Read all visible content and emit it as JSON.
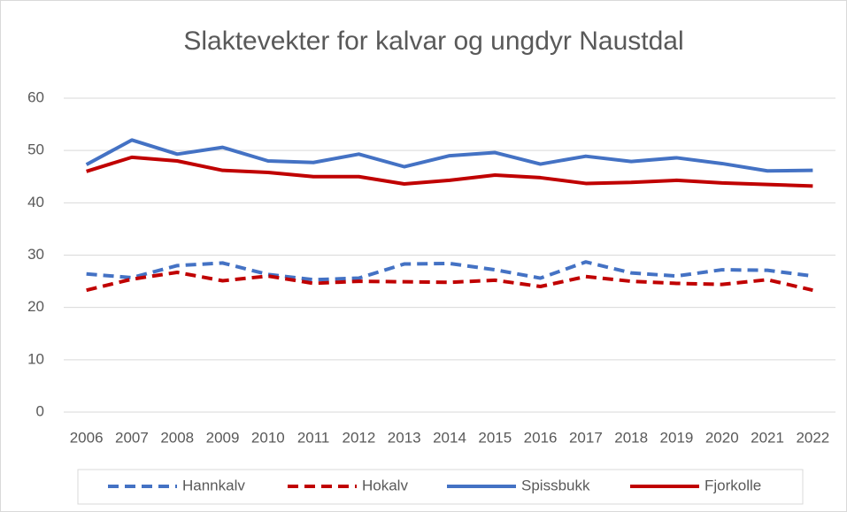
{
  "chart_data": {
    "type": "line",
    "title": "Slaktevekter for kalvar og ungdyr Naustdal",
    "categories": [
      "2006",
      "2007",
      "2008",
      "2009",
      "2010",
      "2011",
      "2012",
      "2013",
      "2014",
      "2015",
      "2016",
      "2017",
      "2018",
      "2019",
      "2020",
      "2021",
      "2022"
    ],
    "series": [
      {
        "name": "Hannkalv",
        "color": "#4472c4",
        "dashed": true,
        "values": [
          26.4,
          25.7,
          28,
          28.5,
          26.3,
          25.3,
          25.6,
          28.3,
          28.4,
          27.2,
          25.6,
          28.7,
          26.6,
          26,
          27.2,
          27.1,
          26
        ]
      },
      {
        "name": "Hokalv",
        "color": "#c00000",
        "dashed": true,
        "values": [
          23.3,
          25.4,
          26.7,
          25.1,
          26,
          24.6,
          25,
          24.9,
          24.8,
          25.2,
          24,
          25.9,
          25,
          24.6,
          24.4,
          25.3,
          23.3
        ]
      },
      {
        "name": "Spissbukk",
        "color": "#4472c4",
        "dashed": false,
        "values": [
          47.3,
          52,
          49.3,
          50.6,
          48,
          47.7,
          49.3,
          46.9,
          49,
          49.6,
          47.4,
          48.9,
          47.9,
          48.6,
          47.5,
          46.1,
          46.2
        ]
      },
      {
        "name": "Fjorkolle",
        "color": "#c00000",
        "dashed": false,
        "values": [
          46,
          48.7,
          48,
          46.2,
          45.8,
          45,
          45,
          43.6,
          44.3,
          45.3,
          44.8,
          43.7,
          43.9,
          44.3,
          43.8,
          43.5,
          43.2
        ]
      }
    ],
    "ylim": [
      0,
      60
    ],
    "yticks": [
      0,
      10,
      20,
      30,
      40,
      50,
      60
    ],
    "grid": true,
    "legend": "bottom"
  }
}
